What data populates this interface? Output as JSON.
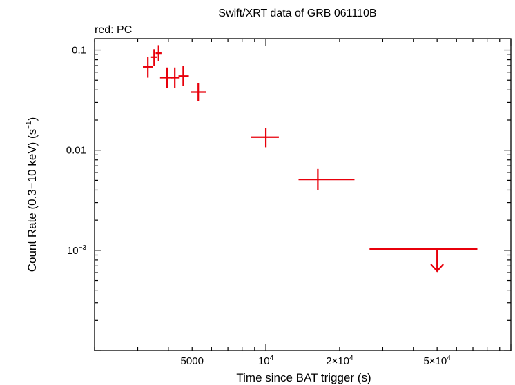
{
  "chart_data": {
    "type": "scatter",
    "title": "Swift/XRT data of GRB 061110B",
    "subtitle": "red: PC",
    "xlabel": "Time since BAT trigger (s)",
    "ylabel_main": "Count Rate (0.3−10 keV) (s",
    "ylabel_sup": "−1",
    "ylabel_tail": ")",
    "x_scale": "log",
    "y_scale": "log",
    "xlim": [
      2000,
      100000
    ],
    "ylim": [
      0.0001,
      0.13
    ],
    "x_tick_labels": [
      {
        "value": 5000,
        "base": "5000",
        "sup": ""
      },
      {
        "value": 10000,
        "base": "10",
        "sup": "4"
      },
      {
        "value": 20000,
        "base": "2×10",
        "sup": "4"
      },
      {
        "value": 50000,
        "base": "5×10",
        "sup": "4"
      }
    ],
    "y_tick_labels": [
      {
        "value": 0.1,
        "base": "0.1",
        "sup": ""
      },
      {
        "value": 0.01,
        "base": "0.01",
        "sup": ""
      },
      {
        "value": 0.001,
        "base": "10",
        "sup": "−3"
      }
    ],
    "series_color": "#e8000b",
    "points": [
      {
        "x": 3300,
        "xlo": 3150,
        "xhi": 3450,
        "y": 0.068,
        "ylo": 0.053,
        "yhi": 0.085
      },
      {
        "x": 3500,
        "xlo": 3400,
        "xhi": 3600,
        "y": 0.085,
        "ylo": 0.07,
        "yhi": 0.102
      },
      {
        "x": 3650,
        "xlo": 3550,
        "xhi": 3750,
        "y": 0.093,
        "ylo": 0.078,
        "yhi": 0.112
      },
      {
        "x": 3950,
        "xlo": 3700,
        "xhi": 4150,
        "y": 0.053,
        "ylo": 0.042,
        "yhi": 0.067
      },
      {
        "x": 4250,
        "xlo": 4100,
        "xhi": 4450,
        "y": 0.053,
        "ylo": 0.042,
        "yhi": 0.067
      },
      {
        "x": 4600,
        "xlo": 4400,
        "xhi": 4850,
        "y": 0.055,
        "ylo": 0.044,
        "yhi": 0.07
      },
      {
        "x": 5300,
        "xlo": 4950,
        "xhi": 5700,
        "y": 0.038,
        "ylo": 0.031,
        "yhi": 0.047
      },
      {
        "x": 10000,
        "xlo": 8700,
        "xhi": 11300,
        "y": 0.0135,
        "ylo": 0.0107,
        "yhi": 0.0168
      },
      {
        "x": 16300,
        "xlo": 13600,
        "xhi": 23000,
        "y": 0.0051,
        "ylo": 0.004,
        "yhi": 0.0065
      }
    ],
    "upper_limits": [
      {
        "x": 50000,
        "xlo": 26500,
        "xhi": 73000,
        "y": 0.00103,
        "arrow_to": 0.00062
      }
    ]
  }
}
